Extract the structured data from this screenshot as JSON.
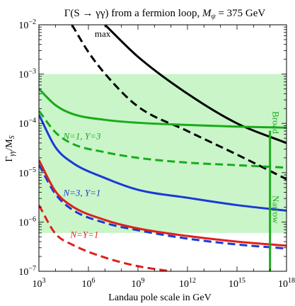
{
  "chart_data": {
    "type": "line",
    "title": "Γ(S → γγ) from a fermion loop, M_ψ = 375 GeV",
    "title_main": "Γ(S → γγ) from a fermion loop, ",
    "title_mass": "M",
    "title_mass_sub": "ψ",
    "title_mass_value": " = 375 GeV",
    "xlabel": "Landau pole scale in GeV",
    "ylabel": "Γγγ/MS",
    "ylabel_main": "Γ",
    "ylabel_sub": "γγ",
    "ylabel_denom": "/M",
    "ylabel_denom_sub": "S",
    "xscale": "log",
    "yscale": "log",
    "xlim": [
      1000,
      1e+18
    ],
    "ylim": [
      1e-07,
      0.01
    ],
    "grid": false,
    "x_ticks": [
      {
        "value": 1000.0,
        "base": "10",
        "exp": "3"
      },
      {
        "value": 1000000.0,
        "base": "10",
        "exp": "6"
      },
      {
        "value": 1000000000.0,
        "base": "10",
        "exp": "9"
      },
      {
        "value": 1000000000000.0,
        "base": "10",
        "exp": "12"
      },
      {
        "value": 1000000000000000.0,
        "base": "10",
        "exp": "15"
      },
      {
        "value": 1e+18,
        "base": "10",
        "exp": "18"
      }
    ],
    "y_ticks": [
      {
        "value": 1e-07,
        "base": "10",
        "exp": "−7"
      },
      {
        "value": 1e-06,
        "base": "10",
        "exp": "−6"
      },
      {
        "value": 1e-05,
        "base": "10",
        "exp": "−5"
      },
      {
        "value": 0.0001,
        "base": "10",
        "exp": "−4"
      },
      {
        "value": 0.001,
        "base": "10",
        "exp": "−3"
      },
      {
        "value": 0.01,
        "base": "10",
        "exp": "−2"
      }
    ],
    "band": {
      "ymin": 6e-07,
      "ymax": 0.001,
      "color": "#c9f5c9"
    },
    "vertical_line": {
      "x": 1e+17,
      "color": "#1faa1f",
      "label_upper": "Broad",
      "label_lower": "Narrow"
    },
    "series": [
      {
        "label": "max",
        "color": "#000000",
        "style": "solid",
        "points": [
          [
            10000000.0,
            0.01
          ],
          [
            1000000000.0,
            0.00225
          ],
          [
            1000000000000.0,
            0.0004
          ],
          [
            1000000000000000.0,
            0.0001
          ],
          [
            1e+18,
            4e-05
          ]
        ]
      },
      {
        "label": "max",
        "color": "#000000",
        "style": "dashed",
        "points": [
          [
            100000.0,
            0.01
          ],
          [
            1000000.0,
            0.0028
          ],
          [
            10000000.0,
            0.00102
          ],
          [
            1000000000.0,
            0.00022
          ],
          [
            1000000000000.0,
            7e-05
          ],
          [
            1000000000000000.0,
            2.33e-05
          ],
          [
            1e+18,
            7.4e-06
          ]
        ]
      },
      {
        "label": "N=1, Y=3",
        "color": "#1aaa1a",
        "style": "solid",
        "points": [
          [
            1000.0,
            0.0005
          ],
          [
            10000.0,
            0.000235
          ],
          [
            100000.0,
            0.000157
          ],
          [
            10000000.0,
            0.000118
          ],
          [
            1000000000.0,
            0.000103
          ],
          [
            1000000000000.0,
            9.3e-05
          ],
          [
            1000000000000000.0,
            8.6e-05
          ],
          [
            1e+18,
            8.2e-05
          ]
        ]
      },
      {
        "label": "N=1, Y=3",
        "color": "#1aaa1a",
        "style": "dashed",
        "points": [
          [
            1000.0,
            0.00018
          ],
          [
            10000.0,
            6.6e-05
          ],
          [
            100000.0,
            3.9e-05
          ],
          [
            10000000.0,
            2.6e-05
          ],
          [
            1000000000.0,
            2e-05
          ],
          [
            1000000000000.0,
            1.6e-05
          ],
          [
            1000000000000000.0,
            1.42e-05
          ],
          [
            1e+18,
            1.27e-05
          ]
        ]
      },
      {
        "label": "N=3, Y=1",
        "color": "#1a3ad6",
        "style": "solid",
        "points": [
          [
            1000.0,
            0.00015
          ],
          [
            10000.0,
            3.3e-05
          ],
          [
            100000.0,
            1.62e-05
          ],
          [
            10000000.0,
            7.8e-06
          ],
          [
            1000000000.0,
            4.5e-06
          ],
          [
            1000000000000.0,
            3.1e-06
          ],
          [
            1000000000000000.0,
            2.2e-06
          ],
          [
            1e+18,
            1.7e-06
          ]
        ]
      },
      {
        "label": "N=3, Y=1",
        "color": "#1a3ad6",
        "style": "dashed",
        "points": [
          [
            1000.0,
            1.45e-05
          ],
          [
            10000.0,
            3.7e-06
          ],
          [
            100000.0,
            1.8e-06
          ],
          [
            10000000.0,
            9.6e-07
          ],
          [
            1000000000.0,
            6.8e-07
          ],
          [
            1000000000000.0,
            4.6e-07
          ],
          [
            1000000000000000.0,
            3.5e-07
          ],
          [
            1e+18,
            2.9e-07
          ]
        ]
      },
      {
        "label": "N=Y=1",
        "color": "#e0201a",
        "style": "solid",
        "points": [
          [
            1000.0,
            1.8e-05
          ],
          [
            10000.0,
            4.2e-06
          ],
          [
            100000.0,
            2.1e-06
          ],
          [
            10000000.0,
            1.1e-06
          ],
          [
            1000000000.0,
            7.4e-07
          ],
          [
            1000000000000.0,
            5.2e-07
          ],
          [
            1000000000000000.0,
            4e-07
          ],
          [
            1e+18,
            3.3e-07
          ]
        ]
      },
      {
        "label": "N=Y=1",
        "color": "#e0201a",
        "style": "dashed",
        "points": [
          [
            1000.0,
            2.2e-06
          ],
          [
            10000.0,
            5.8e-07
          ],
          [
            100000.0,
            3.5e-07
          ],
          [
            10000000.0,
            1.9e-07
          ],
          [
            1000000000.0,
            1.27e-07
          ],
          [
            100000000000.0,
            1e-07
          ]
        ]
      }
    ],
    "annotations": [
      {
        "text": "max",
        "x": 2400000.0,
        "y": 0.0057,
        "color": "#000000"
      },
      {
        "text": "N=1, Y=3",
        "x": 30000.0,
        "y": 4.8e-05,
        "color": "#1aaa1a"
      },
      {
        "text": "N=3, Y=1",
        "x": 30000.0,
        "y": 3.4e-06,
        "color": "#1a3ad6"
      },
      {
        "text": "N=Y=1",
        "x": 80000.0,
        "y": 4.8e-07,
        "color": "#e0201a"
      }
    ]
  }
}
